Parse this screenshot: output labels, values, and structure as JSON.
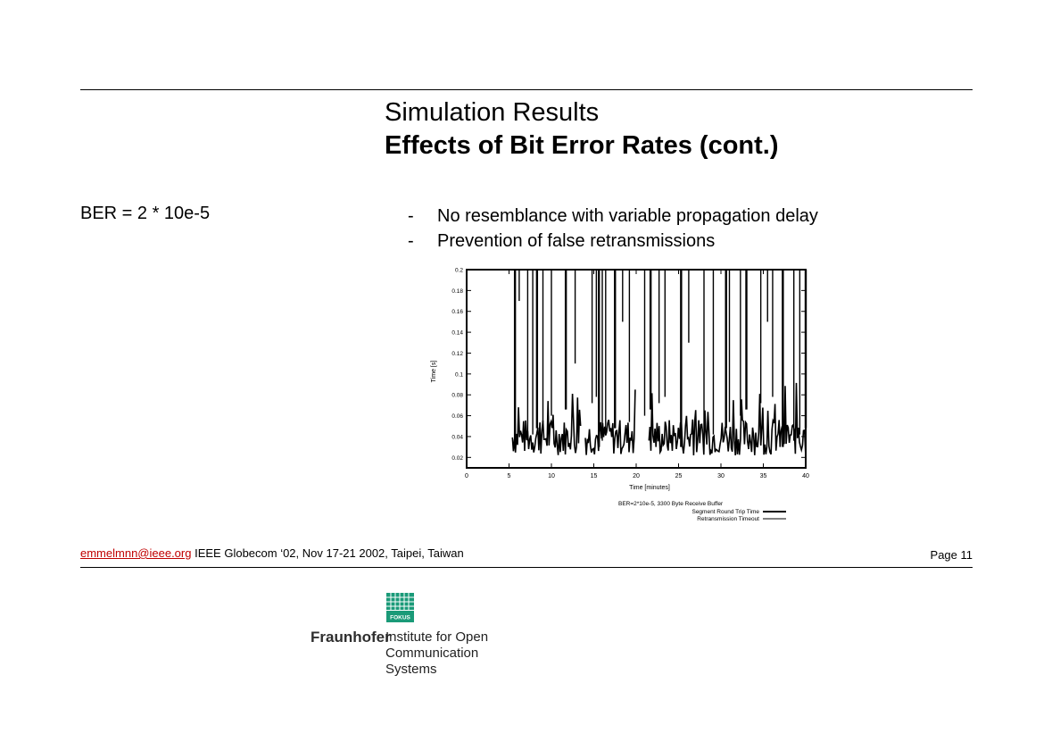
{
  "slide": {
    "title": "Simulation Results",
    "subtitle": "Effects of Bit Error Rates (cont.)",
    "ber_label": "BER = 2 * 10e-5",
    "bullets": [
      "No resemblance with variable propagation delay",
      "Prevention of false retransmissions"
    ],
    "bullet_marker": "-"
  },
  "footer": {
    "email": "emmelmnn@ieee.org",
    "conference": " IEEE Globecom ‘02, Nov 17-21 2002, Taipei, Taiwan",
    "page": "Page 11"
  },
  "logo": {
    "brand": "Fraunhofer",
    "institute_line1": "Institute for Open",
    "institute_line2": "Communication Systems",
    "badge": "FOKUS",
    "color": "#1a9a78"
  },
  "chart_data": {
    "type": "line",
    "xlabel": "Time [minutes]",
    "ylabel": "Time [s]",
    "xlim": [
      0,
      40
    ],
    "ylim": [
      0.01,
      0.2
    ],
    "x_ticks": [
      "0",
      "5",
      "10",
      "15",
      "20",
      "25",
      "30",
      "35",
      "40"
    ],
    "y_ticks": [
      "0.02",
      "0.04",
      "0.06",
      "0.08",
      "0.1",
      "0.12",
      "0.14",
      "0.16",
      "0.18",
      "0.2"
    ],
    "legend_title": "BER=2*10e-5, 3300 Byte Receive Buffer",
    "legend_position": "below",
    "series": [
      {
        "name": "Segment Round Trip Time",
        "style": "thick"
      },
      {
        "name": "Retransmission Timeout",
        "style": "thin"
      }
    ],
    "segments": [
      [
        5.5,
        0.02,
        0.07
      ],
      [
        6.5,
        0.02,
        0.08
      ],
      [
        8,
        0.02,
        0.09
      ],
      [
        12,
        0.02,
        0.08
      ],
      [
        17,
        0.02,
        0.07
      ],
      [
        22,
        0.02,
        0.08
      ],
      [
        24,
        0.02,
        0.06
      ],
      [
        27,
        0.02,
        0.08
      ],
      [
        30,
        0.02,
        0.07
      ],
      [
        33,
        0.02,
        0.08
      ],
      [
        36,
        0.02,
        0.09
      ],
      [
        39,
        0.02,
        0.07
      ]
    ],
    "spikes": [
      5.7,
      7.2,
      7.8,
      8.3,
      9.0,
      10.0,
      11.7,
      14.8,
      15.3,
      15.6,
      16.0,
      16.4,
      17.5,
      19.2,
      21.0,
      21.7,
      22.7,
      23.4,
      25.3,
      28.0,
      29.1,
      30.6,
      31.0,
      32.3,
      33.0,
      34.7,
      36.1,
      37.3,
      38.6,
      39.3,
      40.0
    ]
  }
}
